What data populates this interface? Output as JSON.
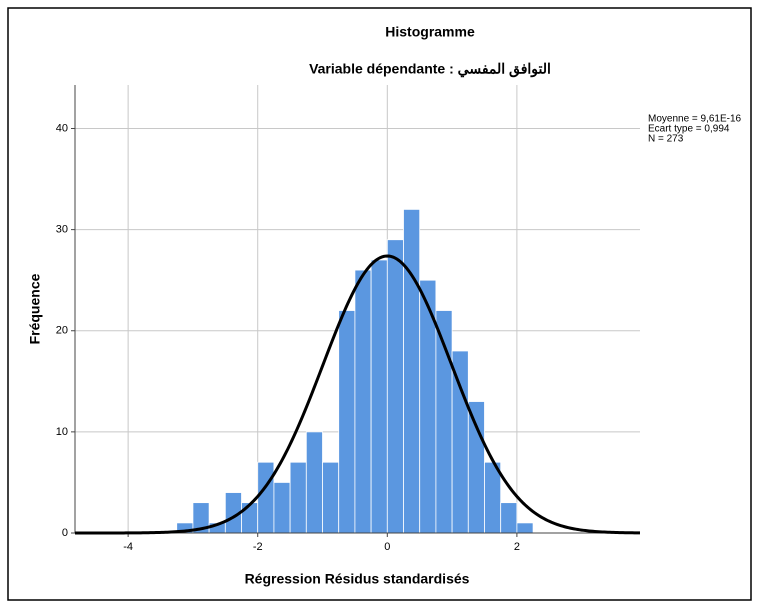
{
  "chart_data": {
    "type": "histogram",
    "title": "Histogramme",
    "subtitle": "Variable dépendante : التوافق المفسي",
    "xlabel": "Régression Résidus standardisés",
    "ylabel": "Fréquence",
    "bins": [
      -3.25,
      -3,
      -2.75,
      -2.5,
      -2.25,
      -2,
      -1.75,
      -1.5,
      -1.25,
      -1,
      -0.75,
      -0.5,
      -0.25,
      0,
      0.25,
      0.5,
      0.75,
      1,
      1.25,
      1.5,
      1.75,
      2,
      2.25
    ],
    "values": [
      1,
      3,
      1,
      4,
      3,
      7,
      5,
      7,
      10,
      7,
      22,
      26,
      27,
      29,
      32,
      25,
      22,
      18,
      13,
      7,
      3,
      1
    ],
    "color": "#5b97e0",
    "xlim": [
      -4.82,
      3.9
    ],
    "xticks": [
      -4,
      -2,
      0,
      2
    ],
    "ylim": [
      0,
      44.3
    ],
    "yticks": [
      0,
      10,
      20,
      30,
      40
    ],
    "grid": true,
    "stats": [
      "Moyenne = 9,61E-16",
      "Ecart type = 0,994",
      "N = 273"
    ],
    "normal_curve": {
      "mean": 9.61e-16,
      "sd": 0.994,
      "n": 273
    }
  }
}
